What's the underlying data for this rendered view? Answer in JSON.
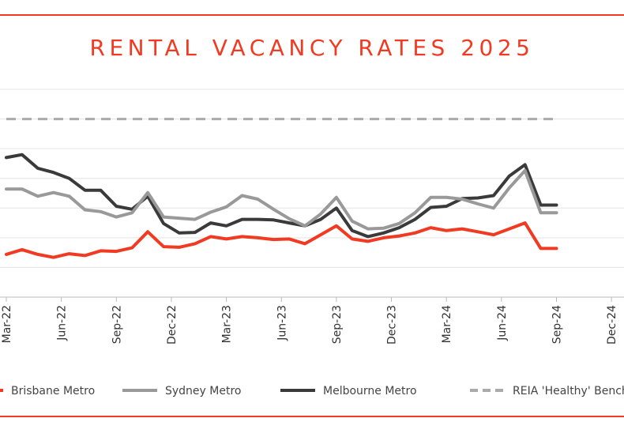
{
  "chart_data": {
    "type": "line",
    "title": "RENTAL VACANCY RATES 2025",
    "xlabel": "",
    "ylabel": "",
    "grid": true,
    "legend_position": "bottom",
    "tick_labels": [
      "Mar-22",
      "Jun-22",
      "Sep-22",
      "Dec-22",
      "Mar-23",
      "Jun-23",
      "Sep-23",
      "Dec-23",
      "Mar-24",
      "Jun-24",
      "Sep-24",
      "Dec-24"
    ],
    "ylim": [
      0,
      3.5
    ],
    "series": [
      {
        "name": "Brisbane Metro",
        "color": "#f03a22",
        "dash": false,
        "values": [
          0.72,
          0.8,
          0.72,
          0.67,
          0.73,
          0.7,
          0.78,
          0.77,
          0.83,
          1.1,
          0.85,
          0.84,
          0.9,
          1.02,
          0.98,
          1.02,
          1.0,
          0.97,
          0.98,
          0.9,
          1.05,
          1.2,
          0.98,
          0.94,
          1.0,
          1.03,
          1.08,
          1.17,
          1.12,
          1.15,
          1.1,
          1.05,
          1.15,
          1.25,
          0.82,
          0.82
        ]
      },
      {
        "name": "Sydney Metro",
        "color": "#999999",
        "dash": false,
        "values": [
          1.82,
          1.82,
          1.7,
          1.76,
          1.7,
          1.47,
          1.44,
          1.35,
          1.42,
          1.76,
          1.35,
          1.33,
          1.31,
          1.43,
          1.52,
          1.71,
          1.65,
          1.48,
          1.32,
          1.2,
          1.4,
          1.68,
          1.28,
          1.15,
          1.16,
          1.24,
          1.42,
          1.68,
          1.68,
          1.65,
          1.57,
          1.5,
          1.84,
          2.13,
          1.42,
          1.42
        ]
      },
      {
        "name": "Melbourne Metro",
        "color": "#3a3a3a",
        "dash": false,
        "values": [
          2.35,
          2.4,
          2.17,
          2.1,
          2.0,
          1.8,
          1.8,
          1.53,
          1.48,
          1.7,
          1.24,
          1.08,
          1.09,
          1.25,
          1.2,
          1.31,
          1.31,
          1.3,
          1.25,
          1.2,
          1.31,
          1.5,
          1.12,
          1.02,
          1.08,
          1.17,
          1.31,
          1.51,
          1.53,
          1.66,
          1.67,
          1.71,
          2.04,
          2.23,
          1.55,
          1.55
        ]
      },
      {
        "name": "REIA 'Healthy' Benchmark",
        "color": "#aaaaaa",
        "dash": true,
        "values": [
          3.0,
          3.0,
          3.0,
          3.0,
          3.0,
          3.0,
          3.0,
          3.0,
          3.0,
          3.0,
          3.0,
          3.0,
          3.0,
          3.0,
          3.0,
          3.0,
          3.0,
          3.0,
          3.0,
          3.0,
          3.0,
          3.0,
          3.0,
          3.0,
          3.0,
          3.0,
          3.0,
          3.0,
          3.0,
          3.0,
          3.0,
          3.0,
          3.0,
          3.0,
          3.0,
          3.0
        ]
      }
    ]
  }
}
